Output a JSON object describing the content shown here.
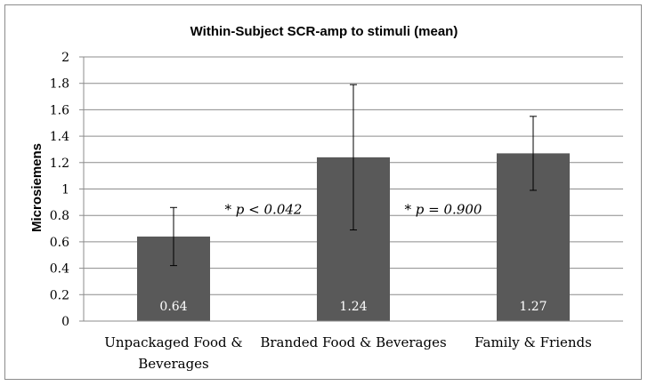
{
  "chart_data": {
    "type": "bar",
    "title": "Within-Subject SCR-amp to stimuli (mean)",
    "xlabel": "",
    "ylabel": "Microsiemens",
    "ylim": [
      0,
      2
    ],
    "yticks": [
      "0",
      "0.2",
      "0.4",
      "0.6",
      "0.8",
      "1",
      "1.2",
      "1.4",
      "1.6",
      "1.8",
      "2"
    ],
    "categories": [
      [
        "Unpackaged Food &",
        "Beverages"
      ],
      [
        "Branded Food & Beverages"
      ],
      [
        "Family & Friends"
      ]
    ],
    "values": [
      0.64,
      1.24,
      1.27
    ],
    "data_labels": [
      "0.64",
      "1.24",
      "1.27"
    ],
    "error_bars": [
      {
        "low": 0.42,
        "high": 0.86
      },
      {
        "low": 0.69,
        "high": 1.79
      },
      {
        "low": 0.99,
        "high": 1.55
      }
    ],
    "annotations": [
      {
        "text": "* p < 0.042",
        "between": [
          0,
          1
        ],
        "y": 0.83
      },
      {
        "text": "* p = 0.900",
        "between": [
          1,
          2
        ],
        "y": 0.83
      }
    ],
    "grid": true,
    "bar_color": "#595959",
    "grid_color": "#8c8c8c"
  }
}
